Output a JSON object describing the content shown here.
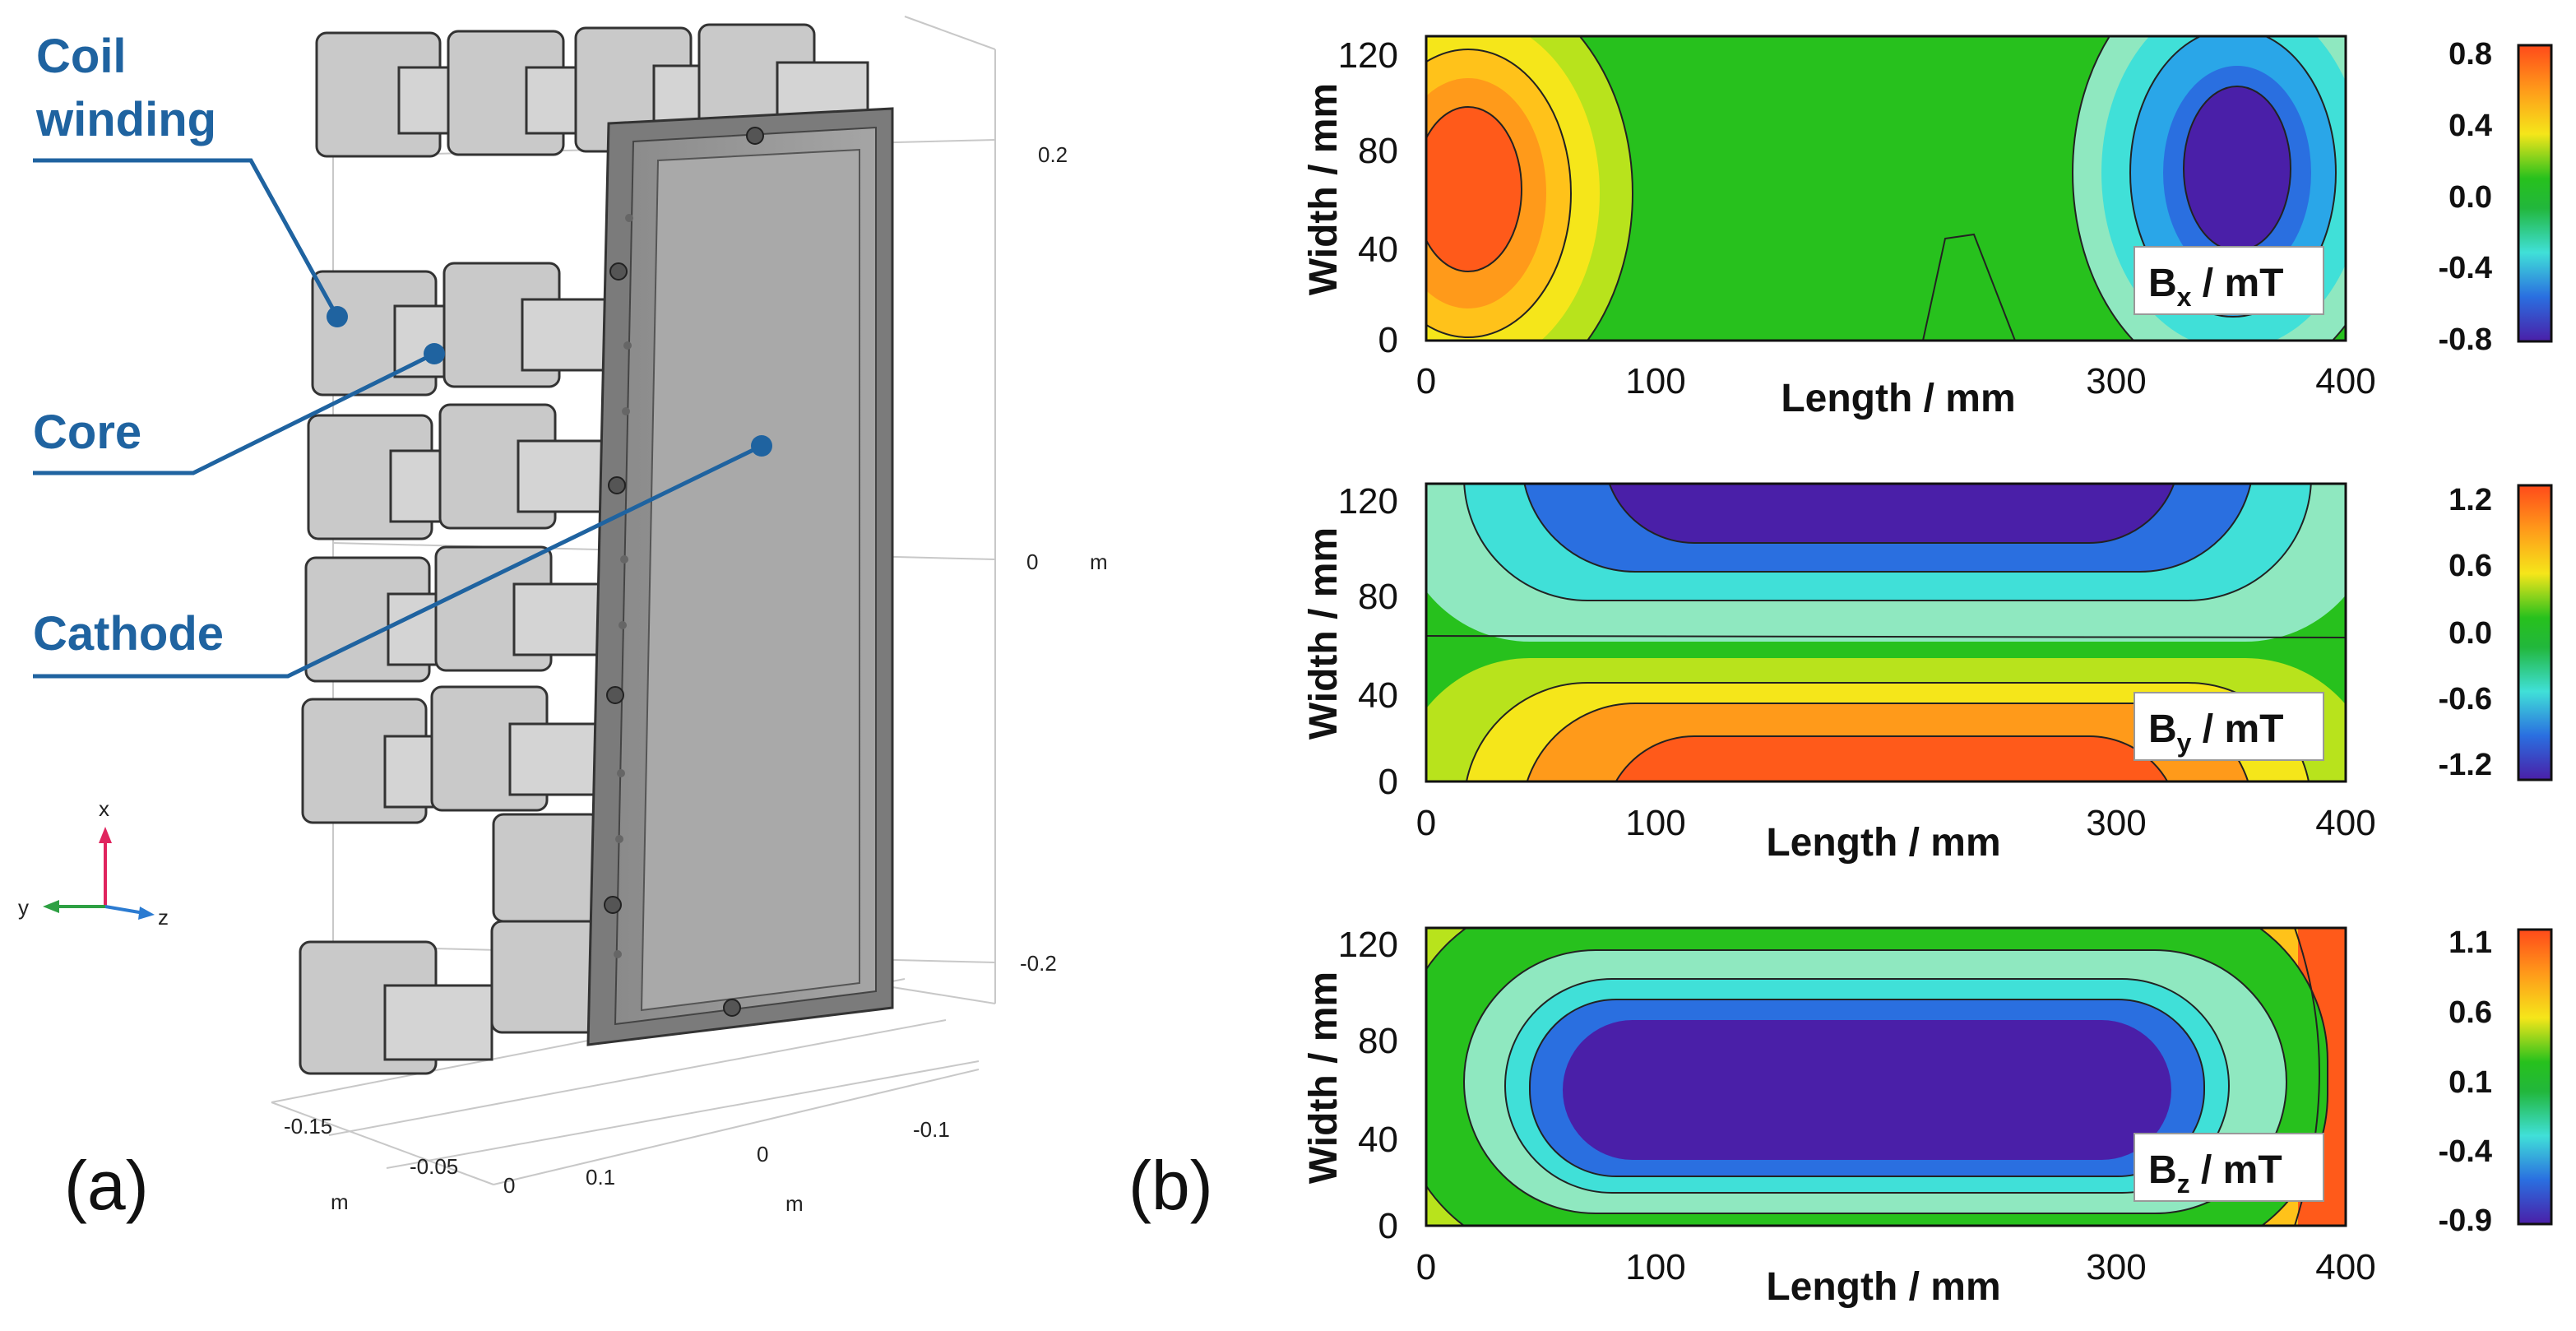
{
  "panel_labels": {
    "a": "(a)",
    "b": "(b)"
  },
  "callouts": {
    "coil": [
      "Coil",
      "winding"
    ],
    "core": "Core",
    "cathode": "Cathode"
  },
  "axes3d": {
    "right_ticks": [
      "0.2",
      "0",
      "-0.2"
    ],
    "right_unit": "m",
    "front_ticks": [
      "-0.15",
      "-0.05",
      "0",
      "0.1"
    ],
    "back_ticks": [
      "0",
      "-0.1"
    ],
    "unit_label": "m",
    "triad": {
      "x": "x",
      "y": "y",
      "z": "z"
    }
  },
  "colors": {
    "callout": "#1f63a0",
    "triad_x": "#e0245e",
    "triad_y": "#2ea043",
    "triad_z": "#2b7bd1"
  },
  "plots": [
    {
      "badge": {
        "main": "B",
        "sub": "x",
        "unit": " / mT"
      },
      "ylabel": "Width / mm",
      "xlabel": "Length / mm",
      "xticks": [
        "0",
        "100",
        "300",
        "400"
      ],
      "yticks": [
        "0",
        "40",
        "80",
        "120"
      ],
      "cb_ticks": [
        "0.8",
        "0.4",
        "0.0",
        "-0.4",
        "-0.8"
      ]
    },
    {
      "badge": {
        "main": "B",
        "sub": "y",
        "unit": " / mT"
      },
      "ylabel": "Width / mm",
      "xlabel": "Length / mm",
      "xticks": [
        "0",
        "100",
        "300",
        "400"
      ],
      "yticks": [
        "0",
        "40",
        "80",
        "120"
      ],
      "cb_ticks": [
        "1.2",
        "0.6",
        "0.0",
        "-0.6",
        "-1.2"
      ]
    },
    {
      "badge": {
        "main": "B",
        "sub": "z",
        "unit": " / mT"
      },
      "ylabel": "Width / mm",
      "xlabel": "Length / mm",
      "xticks": [
        "0",
        "100",
        "300",
        "400"
      ],
      "yticks": [
        "0",
        "40",
        "80",
        "120"
      ],
      "cb_ticks": [
        "1.1",
        "0.6",
        "0.1",
        "-0.4",
        "-0.9"
      ]
    }
  ]
}
